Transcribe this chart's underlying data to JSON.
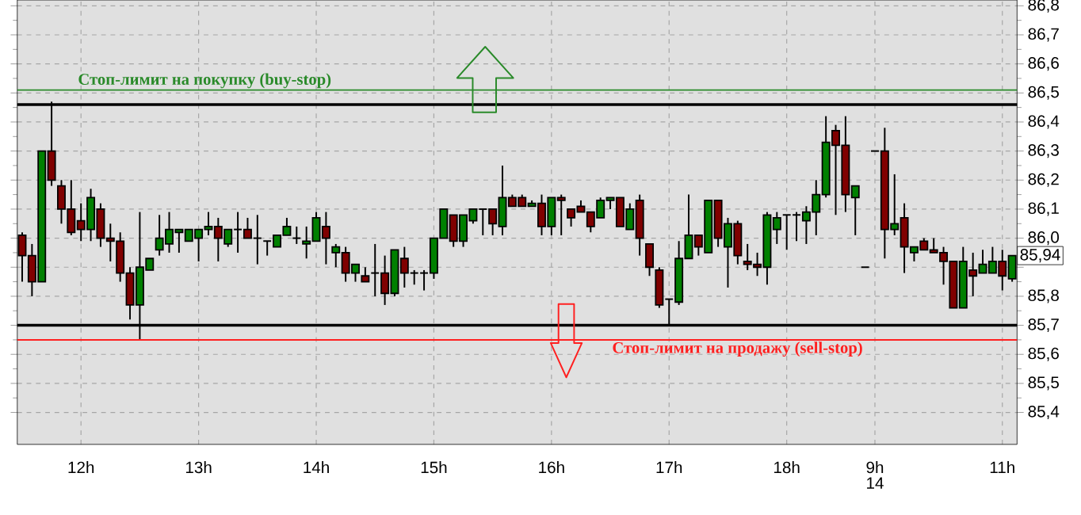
{
  "chart_data": {
    "type": "candlestick",
    "categories": [
      null,
      null,
      null,
      null,
      null,
      null,
      "12h",
      null,
      null,
      null,
      null,
      null,
      null,
      null,
      null,
      null,
      null,
      null,
      "13h",
      null,
      null,
      null,
      null,
      null,
      null,
      null,
      null,
      null,
      null,
      null,
      "14h",
      null,
      null,
      null,
      null,
      null,
      null,
      null,
      null,
      null,
      null,
      null,
      "15h",
      null,
      null,
      null,
      null,
      null,
      null,
      null,
      null,
      null,
      null,
      null,
      "16h",
      null,
      null,
      null,
      null,
      null,
      null,
      null,
      null,
      null,
      null,
      null,
      "17h",
      null,
      null,
      null,
      null,
      null,
      null,
      null,
      null,
      null,
      null,
      null,
      "18h",
      null,
      null,
      null,
      null,
      null,
      null,
      null,
      null,
      "9h",
      null,
      null,
      null,
      null,
      null,
      null,
      null,
      null,
      null,
      null,
      null,
      null,
      "11h",
      null
    ],
    "ohlc": [
      [
        86.01,
        86.02,
        85.85,
        85.94
      ],
      [
        85.94,
        85.98,
        85.8,
        85.85
      ],
      [
        85.85,
        86.3,
        85.85,
        86.3
      ],
      [
        86.3,
        86.47,
        86.18,
        86.2
      ],
      [
        86.18,
        86.2,
        86.05,
        86.1
      ],
      [
        86.1,
        86.2,
        86.01,
        86.02
      ],
      [
        86.06,
        86.12,
        85.99,
        86.03
      ],
      [
        86.03,
        86.17,
        85.99,
        86.14
      ],
      [
        86.1,
        86.12,
        85.97,
        86.0
      ],
      [
        86.0,
        86.05,
        85.92,
        85.99
      ],
      [
        85.99,
        86.02,
        85.85,
        85.88
      ],
      [
        85.88,
        85.9,
        85.72,
        85.77
      ],
      [
        85.77,
        86.09,
        85.65,
        85.9
      ],
      [
        85.89,
        85.93,
        85.89,
        85.93
      ],
      [
        85.96,
        86.08,
        85.94,
        86.0
      ],
      [
        85.98,
        86.09,
        85.95,
        86.03
      ],
      [
        86.02,
        86.03,
        85.95,
        86.03
      ],
      [
        85.99,
        86.03,
        85.99,
        86.03
      ],
      [
        86.0,
        86.03,
        85.92,
        86.03
      ],
      [
        86.03,
        86.09,
        86.01,
        86.04
      ],
      [
        86.04,
        86.07,
        85.92,
        86.0
      ],
      [
        85.98,
        86.03,
        85.97,
        86.03
      ],
      [
        86.03,
        86.09,
        85.95,
        86.03
      ],
      [
        86.03,
        86.07,
        86.0,
        86.0
      ],
      [
        86.0,
        86.08,
        85.91,
        86.0
      ],
      [
        85.99,
        85.99,
        85.94,
        85.99
      ],
      [
        85.97,
        86.01,
        85.97,
        86.01
      ],
      [
        86.01,
        86.07,
        86.01,
        86.04
      ],
      [
        86.0,
        86.04,
        85.98,
        86.0
      ],
      [
        85.98,
        86.04,
        85.93,
        85.99
      ],
      [
        85.99,
        86.09,
        85.99,
        86.07
      ],
      [
        86.04,
        86.09,
        85.91,
        86.0
      ],
      [
        85.95,
        85.98,
        85.9,
        85.97
      ],
      [
        85.95,
        85.97,
        85.85,
        85.88
      ],
      [
        85.88,
        85.91,
        85.85,
        85.91
      ],
      [
        85.87,
        85.9,
        85.85,
        85.85
      ],
      [
        85.88,
        85.98,
        85.8,
        85.88
      ],
      [
        85.88,
        85.94,
        85.77,
        85.81
      ],
      [
        85.81,
        85.96,
        85.8,
        85.96
      ],
      [
        85.93,
        85.97,
        85.83,
        85.88
      ],
      [
        85.88,
        85.89,
        85.84,
        85.88
      ],
      [
        85.88,
        85.89,
        85.82,
        85.88
      ],
      [
        85.88,
        86.0,
        85.86,
        86.0
      ],
      [
        86.0,
        86.1,
        86.0,
        86.1
      ],
      [
        86.08,
        86.08,
        85.97,
        85.99
      ],
      [
        85.99,
        86.08,
        85.97,
        86.08
      ],
      [
        86.06,
        86.1,
        86.05,
        86.1
      ],
      [
        86.1,
        86.1,
        86.01,
        86.1
      ],
      [
        86.1,
        86.1,
        86.01,
        86.05
      ],
      [
        86.04,
        86.25,
        86.01,
        86.14
      ],
      [
        86.14,
        86.15,
        86.11,
        86.11
      ],
      [
        86.14,
        86.15,
        86.11,
        86.11
      ],
      [
        86.11,
        86.13,
        86.11,
        86.12
      ],
      [
        86.12,
        86.15,
        86.01,
        86.04
      ],
      [
        86.04,
        86.14,
        86.01,
        86.14
      ],
      [
        86.14,
        86.15,
        86.01,
        86.13
      ],
      [
        86.1,
        86.1,
        86.04,
        86.07
      ],
      [
        86.11,
        86.13,
        86.09,
        86.09
      ],
      [
        86.09,
        86.09,
        86.02,
        86.04
      ],
      [
        86.07,
        86.14,
        86.07,
        86.13
      ],
      [
        86.13,
        86.14,
        86.1,
        86.14
      ],
      [
        86.14,
        86.14,
        86.04,
        86.04
      ],
      [
        86.03,
        86.12,
        86.03,
        86.1
      ],
      [
        86.13,
        86.15,
        85.94,
        86.0
      ],
      [
        85.98,
        85.98,
        85.87,
        85.9
      ],
      [
        85.89,
        85.9,
        85.76,
        85.77
      ],
      [
        85.79,
        85.79,
        85.7,
        85.79
      ],
      [
        85.78,
        85.99,
        85.77,
        85.93
      ],
      [
        85.93,
        86.15,
        85.93,
        86.01
      ],
      [
        86.01,
        86.01,
        85.94,
        85.97
      ],
      [
        85.95,
        86.13,
        85.95,
        86.13
      ],
      [
        86.13,
        86.13,
        85.97,
        86.0
      ],
      [
        85.97,
        86.07,
        85.83,
        86.05
      ],
      [
        86.05,
        86.06,
        85.91,
        85.94
      ],
      [
        85.92,
        85.98,
        85.89,
        85.91
      ],
      [
        85.91,
        85.95,
        85.87,
        85.9
      ],
      [
        85.9,
        86.09,
        85.84,
        86.08
      ],
      [
        86.03,
        86.09,
        85.98,
        86.07
      ],
      [
        86.08,
        86.08,
        85.96,
        86.08
      ],
      [
        86.08,
        86.09,
        85.99,
        86.08
      ],
      [
        86.06,
        86.11,
        85.98,
        86.09
      ],
      [
        86.09,
        86.2,
        86.01,
        86.15
      ],
      [
        86.15,
        86.42,
        86.14,
        86.33
      ],
      [
        86.37,
        86.39,
        86.08,
        86.32
      ],
      [
        86.32,
        86.42,
        86.09,
        86.15
      ],
      [
        86.14,
        86.18,
        86.01,
        86.18
      ],
      [
        85.9,
        85.9,
        85.9,
        85.9
      ],
      [
        86.3,
        86.3,
        86.3,
        86.3
      ],
      [
        86.3,
        86.38,
        85.93,
        86.03
      ],
      [
        86.03,
        86.22,
        86.01,
        86.05
      ],
      [
        86.07,
        86.12,
        85.88,
        85.97
      ],
      [
        85.95,
        85.97,
        85.92,
        85.97
      ],
      [
        85.99,
        86.0,
        85.96,
        85.96
      ],
      [
        85.96,
        86.0,
        85.95,
        85.95
      ],
      [
        85.95,
        85.97,
        85.84,
        85.92
      ],
      [
        85.92,
        85.92,
        85.76,
        85.76
      ],
      [
        85.76,
        85.97,
        85.76,
        85.92
      ],
      [
        85.89,
        85.95,
        85.8,
        85.87
      ],
      [
        85.88,
        85.96,
        85.88,
        85.91
      ],
      [
        85.88,
        85.97,
        85.88,
        85.92
      ],
      [
        85.92,
        85.96,
        85.82,
        85.87
      ],
      [
        85.86,
        85.94,
        85.85,
        85.94
      ]
    ],
    "colors": [
      "#800000",
      "#800000",
      "#008000",
      "#800000",
      "#800000",
      "#800000",
      "#800000",
      "#008000",
      "#800000",
      "#800000",
      "#800000",
      "#800000",
      "#008000",
      "#008000",
      "#008000",
      "#008000",
      "#008000",
      "#008000",
      "#008000",
      "#008000",
      "#800000",
      "#008000",
      "#000000",
      "#800000",
      "#000000",
      "#000000",
      "#008000",
      "#008000",
      "#000000",
      "#008000",
      "#008000",
      "#800000",
      "#008000",
      "#800000",
      "#008000",
      "#800000",
      "#000000",
      "#800000",
      "#008000",
      "#800000",
      "#000000",
      "#000000",
      "#008000",
      "#008000",
      "#800000",
      "#008000",
      "#008000",
      "#000000",
      "#800000",
      "#008000",
      "#800000",
      "#800000",
      "#008000",
      "#800000",
      "#008000",
      "#800000",
      "#800000",
      "#800000",
      "#800000",
      "#008000",
      "#008000",
      "#800000",
      "#008000",
      "#800000",
      "#800000",
      "#800000",
      "#000000",
      "#008000",
      "#008000",
      "#800000",
      "#008000",
      "#800000",
      "#008000",
      "#800000",
      "#800000",
      "#800000",
      "#008000",
      "#008000",
      "#000000",
      "#000000",
      "#008000",
      "#008000",
      "#008000",
      "#800000",
      "#800000",
      "#008000",
      "#000000",
      "#000000",
      "#800000",
      "#008000",
      "#800000",
      "#008000",
      "#800000",
      "#800000",
      "#800000",
      "#800000",
      "#008000",
      "#800000",
      "#008000",
      "#008000",
      "#800000",
      "#008000"
    ],
    "ylim": [
      85.29,
      86.82
    ],
    "yticks": [
      {
        "value": 85.4,
        "label": "85,4"
      },
      {
        "value": 85.5,
        "label": "85,5"
      },
      {
        "value": 85.6,
        "label": "85,6"
      },
      {
        "value": 85.7,
        "label": "85,7"
      },
      {
        "value": 85.8,
        "label": "85,8"
      },
      {
        "value": 85.9,
        "label": null
      },
      {
        "value": 86.0,
        "label": "86,0"
      },
      {
        "value": 86.1,
        "label": "86,1"
      },
      {
        "value": 86.2,
        "label": "86,2"
      },
      {
        "value": 86.3,
        "label": "86,3"
      },
      {
        "value": 86.4,
        "label": "86,4"
      },
      {
        "value": 86.5,
        "label": "86,5"
      },
      {
        "value": 86.6,
        "label": "86,6"
      },
      {
        "value": 86.7,
        "label": "86,7"
      },
      {
        "value": 86.8,
        "label": "86,8"
      }
    ],
    "grid": true,
    "ref_lines": [
      {
        "axis": "y",
        "value": 86.51,
        "label": "Стоп-лимит на покупку (buy-stop)",
        "color": "#2a8a2a"
      },
      {
        "axis": "y",
        "value": 86.46,
        "color": "#000000"
      },
      {
        "axis": "y",
        "value": 85.7,
        "color": "#000000"
      },
      {
        "axis": "y",
        "value": 85.65,
        "label": "Стоп-лимит на продажу (sell-stop)",
        "color": "#ff2020"
      }
    ],
    "annotations": [
      {
        "text": "85,94",
        "y": 85.94
      },
      "14"
    ]
  }
}
